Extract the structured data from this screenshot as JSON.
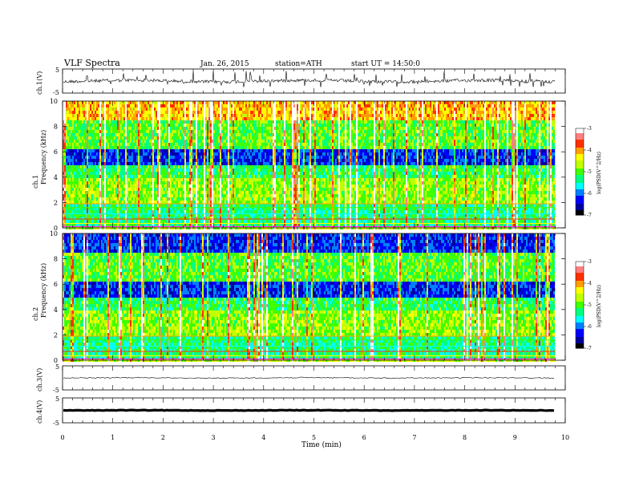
{
  "header": {
    "title": "VLF Spectra",
    "date": "Jan. 26, 2015",
    "station": "station=ATH",
    "start": "start UT =  14:50:0"
  },
  "chart_data": {
    "type": "heatmap",
    "x_axis": {
      "label": "Time (min)",
      "range": [
        0,
        10
      ],
      "ticks": [
        "0",
        "1",
        "2",
        "3",
        "4",
        "5",
        "6",
        "7",
        "8",
        "9",
        "10"
      ]
    },
    "data_extent_min": 9.8,
    "panels": [
      {
        "id": "ch1v",
        "type": "line",
        "ylabel": "ch.1(V)",
        "ylim": [
          -5,
          5
        ],
        "yticks": [
          "5",
          "-5"
        ],
        "baseline": 0
      },
      {
        "id": "ch1spec",
        "type": "heatmap",
        "ylabel": "ch.1 Frequency (kHz)",
        "ylim": [
          0,
          10
        ],
        "yticks": [
          "0",
          "2",
          "4",
          "6",
          "8",
          "10"
        ],
        "colorbar": {
          "label": "log(PSD(V^2/Hz)",
          "range": [
            -7,
            -3
          ],
          "ticks": [
            "-3",
            "-4",
            "-5",
            "-6",
            "-7"
          ]
        }
      },
      {
        "id": "ch2spec",
        "type": "heatmap",
        "ylabel": "ch.2 Frequency (kHz)",
        "ylim": [
          0,
          10
        ],
        "yticks": [
          "0",
          "2",
          "4",
          "6",
          "8",
          "10"
        ],
        "colorbar": {
          "label": "log(PSD(V^2/Hz)",
          "range": [
            -7,
            -3
          ],
          "ticks": [
            "-3",
            "-4",
            "-5",
            "-6",
            "-7"
          ]
        }
      },
      {
        "id": "ch3v",
        "type": "line",
        "ylabel": "ch.3(V)",
        "ylim": [
          -5,
          5
        ],
        "yticks": [
          "5",
          "-5"
        ],
        "baseline": 0
      },
      {
        "id": "ch4v",
        "type": "line",
        "ylabel": "ch.4(V)",
        "ylim": [
          -5,
          5
        ],
        "yticks": [
          "5",
          "-5"
        ],
        "baseline": 0
      }
    ]
  },
  "colors": {
    "colormap": [
      "#000000",
      "#0000a0",
      "#0000ff",
      "#0080ff",
      "#00ffff",
      "#00ff80",
      "#40ff00",
      "#c0ff00",
      "#ffff00",
      "#ffa000",
      "#ff3000",
      "#ff8080",
      "#ffffff"
    ]
  }
}
